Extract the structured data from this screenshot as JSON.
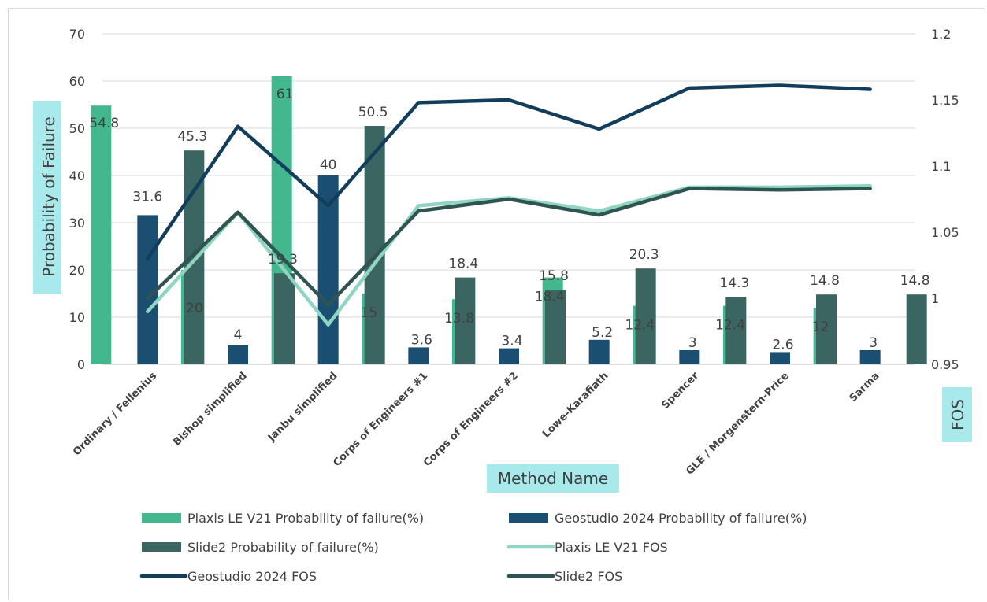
{
  "chart_data": {
    "type": "bar",
    "categories": [
      "Ordinary / Fellenius",
      "Bishop simplified",
      "Janbu simplified",
      "Corps of Engineers #1",
      "Corps of Engineers #2",
      "Lowe-Karafiath",
      "Spencer",
      "GLE / Morgenstern-Price",
      "Sarma"
    ],
    "bar_series": [
      {
        "name": "Plaxis LE V21 Probability of failure(%)",
        "color": "#43b88f",
        "values": [
          54.8,
          20,
          61,
          15,
          13.8,
          18.4,
          12.4,
          12.4,
          12
        ]
      },
      {
        "name": "Geostudio 2024 Probability of failure(%)",
        "color": "#1b4f72",
        "values": [
          31.6,
          4,
          40,
          3.6,
          3.4,
          5.2,
          3,
          2.6,
          3
        ]
      },
      {
        "name": "Slide2 Probability of failure(%)",
        "color": "#3b6560",
        "values": [
          45.3,
          19.3,
          50.5,
          18.4,
          15.8,
          20.3,
          14.3,
          14.8,
          14.8
        ]
      }
    ],
    "bar_labels": [
      [
        "54.8",
        "20",
        "61",
        "15",
        "13.8",
        "18.4",
        "12.4",
        "12.4",
        "12"
      ],
      [
        "31.6",
        "4",
        "40",
        "3.6",
        "3.4",
        "5.2",
        "3",
        "2.6",
        "3"
      ],
      [
        "45.3",
        "19.3",
        "50.5",
        "18.4",
        "15.8",
        "20.3",
        "14.3",
        "14.8",
        "14.8"
      ]
    ],
    "line_series": [
      {
        "name": "Plaxis LE V21 FOS",
        "color": "#8ed6c1",
        "values": [
          0.99,
          1.065,
          0.98,
          1.07,
          1.076,
          1.066,
          1.084,
          1.084,
          1.085
        ]
      },
      {
        "name": "Geostudio 2024 FOS",
        "color": "#123e5c",
        "values": [
          1.03,
          1.13,
          1.07,
          1.148,
          1.15,
          1.128,
          1.159,
          1.161,
          1.158
        ]
      },
      {
        "name": "Slide2 FOS",
        "color": "#2f5451",
        "values": [
          1.0,
          1.065,
          0.995,
          1.066,
          1.075,
          1.063,
          1.083,
          1.082,
          1.083
        ]
      }
    ],
    "ylabel": "Probability of Failure",
    "y2label": "FOS",
    "xlabel": "Method Name",
    "ylim": [
      0,
      70
    ],
    "y2lim": [
      0.95,
      1.2
    ],
    "yticks": [
      "0",
      "10",
      "20",
      "30",
      "40",
      "50",
      "60",
      "70"
    ],
    "y2ticks": [
      "0.95",
      "1",
      "1.05",
      "1.1",
      "1.15",
      "1.2"
    ],
    "grid": true,
    "legend_position": "bottom",
    "label_highlight_color": "#a8e9ec"
  }
}
